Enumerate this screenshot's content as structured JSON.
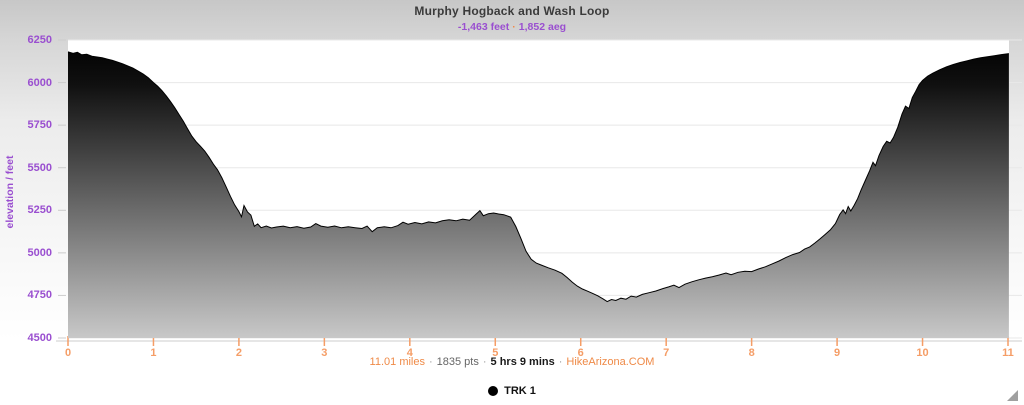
{
  "chart_data": {
    "type": "area",
    "title": "Murphy Hogback and Wash Loop",
    "subtitle": {
      "descent": "-1,463 feet",
      "separator": "·",
      "gain": "1,852 aeg"
    },
    "ylabel": "elevation / feet",
    "xlabel": "",
    "xlim": [
      0,
      11.01
    ],
    "ylim": [
      4500,
      6250
    ],
    "xticks": [
      0,
      1,
      2,
      3,
      4,
      5,
      6,
      7,
      8,
      9,
      10,
      11
    ],
    "yticks": [
      4500,
      4750,
      5000,
      5250,
      5500,
      5750,
      6000,
      6250
    ],
    "grid": "horizontal",
    "legend_position": "bottom",
    "series": [
      {
        "name": "TRK 1",
        "line_color": "#000000",
        "points": [
          [
            0.0,
            6180
          ],
          [
            0.06,
            6172
          ],
          [
            0.11,
            6178
          ],
          [
            0.16,
            6163
          ],
          [
            0.22,
            6166
          ],
          [
            0.28,
            6155
          ],
          [
            0.34,
            6150
          ],
          [
            0.4,
            6146
          ],
          [
            0.46,
            6138
          ],
          [
            0.52,
            6130
          ],
          [
            0.58,
            6120
          ],
          [
            0.64,
            6110
          ],
          [
            0.7,
            6098
          ],
          [
            0.76,
            6085
          ],
          [
            0.82,
            6068
          ],
          [
            0.88,
            6050
          ],
          [
            0.94,
            6028
          ],
          [
            1.0,
            6000
          ],
          [
            1.05,
            5978
          ],
          [
            1.1,
            5952
          ],
          [
            1.15,
            5922
          ],
          [
            1.2,
            5888
          ],
          [
            1.25,
            5852
          ],
          [
            1.3,
            5812
          ],
          [
            1.35,
            5772
          ],
          [
            1.4,
            5728
          ],
          [
            1.45,
            5685
          ],
          [
            1.5,
            5652
          ],
          [
            1.55,
            5626
          ],
          [
            1.6,
            5598
          ],
          [
            1.65,
            5562
          ],
          [
            1.7,
            5522
          ],
          [
            1.75,
            5488
          ],
          [
            1.8,
            5442
          ],
          [
            1.85,
            5388
          ],
          [
            1.9,
            5332
          ],
          [
            1.95,
            5282
          ],
          [
            2.0,
            5242
          ],
          [
            2.03,
            5212
          ],
          [
            2.06,
            5278
          ],
          [
            2.1,
            5240
          ],
          [
            2.14,
            5222
          ],
          [
            2.18,
            5156
          ],
          [
            2.22,
            5170
          ],
          [
            2.26,
            5148
          ],
          [
            2.32,
            5158
          ],
          [
            2.38,
            5146
          ],
          [
            2.44,
            5152
          ],
          [
            2.52,
            5157
          ],
          [
            2.6,
            5148
          ],
          [
            2.68,
            5154
          ],
          [
            2.76,
            5145
          ],
          [
            2.84,
            5152
          ],
          [
            2.9,
            5172
          ],
          [
            2.96,
            5157
          ],
          [
            3.04,
            5150
          ],
          [
            3.12,
            5158
          ],
          [
            3.2,
            5147
          ],
          [
            3.28,
            5153
          ],
          [
            3.36,
            5148
          ],
          [
            3.44,
            5143
          ],
          [
            3.5,
            5157
          ],
          [
            3.56,
            5124
          ],
          [
            3.62,
            5148
          ],
          [
            3.7,
            5153
          ],
          [
            3.78,
            5147
          ],
          [
            3.86,
            5160
          ],
          [
            3.92,
            5180
          ],
          [
            3.98,
            5168
          ],
          [
            4.06,
            5178
          ],
          [
            4.14,
            5170
          ],
          [
            4.22,
            5182
          ],
          [
            4.3,
            5176
          ],
          [
            4.38,
            5188
          ],
          [
            4.46,
            5194
          ],
          [
            4.54,
            5188
          ],
          [
            4.62,
            5198
          ],
          [
            4.7,
            5192
          ],
          [
            4.78,
            5230
          ],
          [
            4.82,
            5248
          ],
          [
            4.86,
            5218
          ],
          [
            4.92,
            5230
          ],
          [
            4.98,
            5234
          ],
          [
            5.04,
            5228
          ],
          [
            5.1,
            5224
          ],
          [
            5.18,
            5210
          ],
          [
            5.24,
            5155
          ],
          [
            5.3,
            5085
          ],
          [
            5.36,
            5010
          ],
          [
            5.42,
            4962
          ],
          [
            5.48,
            4940
          ],
          [
            5.54,
            4928
          ],
          [
            5.62,
            4912
          ],
          [
            5.7,
            4898
          ],
          [
            5.78,
            4880
          ],
          [
            5.84,
            4855
          ],
          [
            5.9,
            4828
          ],
          [
            5.96,
            4805
          ],
          [
            6.02,
            4788
          ],
          [
            6.08,
            4775
          ],
          [
            6.14,
            4762
          ],
          [
            6.2,
            4748
          ],
          [
            6.26,
            4730
          ],
          [
            6.31,
            4714
          ],
          [
            6.36,
            4726
          ],
          [
            6.41,
            4720
          ],
          [
            6.47,
            4734
          ],
          [
            6.53,
            4728
          ],
          [
            6.59,
            4746
          ],
          [
            6.65,
            4740
          ],
          [
            6.72,
            4756
          ],
          [
            6.8,
            4766
          ],
          [
            6.88,
            4776
          ],
          [
            6.96,
            4790
          ],
          [
            7.03,
            4800
          ],
          [
            7.09,
            4810
          ],
          [
            7.15,
            4796
          ],
          [
            7.22,
            4816
          ],
          [
            7.3,
            4830
          ],
          [
            7.38,
            4842
          ],
          [
            7.46,
            4852
          ],
          [
            7.54,
            4860
          ],
          [
            7.62,
            4870
          ],
          [
            7.7,
            4882
          ],
          [
            7.76,
            4872
          ],
          [
            7.84,
            4886
          ],
          [
            7.92,
            4892
          ],
          [
            8.0,
            4890
          ],
          [
            8.08,
            4905
          ],
          [
            8.16,
            4918
          ],
          [
            8.24,
            4935
          ],
          [
            8.32,
            4952
          ],
          [
            8.4,
            4972
          ],
          [
            8.48,
            4990
          ],
          [
            8.56,
            5002
          ],
          [
            8.62,
            5022
          ],
          [
            8.68,
            5035
          ],
          [
            8.74,
            5058
          ],
          [
            8.8,
            5082
          ],
          [
            8.86,
            5108
          ],
          [
            8.92,
            5135
          ],
          [
            8.98,
            5172
          ],
          [
            9.03,
            5225
          ],
          [
            9.07,
            5252
          ],
          [
            9.1,
            5230
          ],
          [
            9.13,
            5272
          ],
          [
            9.16,
            5246
          ],
          [
            9.2,
            5280
          ],
          [
            9.24,
            5318
          ],
          [
            9.28,
            5368
          ],
          [
            9.33,
            5425
          ],
          [
            9.38,
            5482
          ],
          [
            9.42,
            5532
          ],
          [
            9.45,
            5512
          ],
          [
            9.49,
            5572
          ],
          [
            9.54,
            5625
          ],
          [
            9.58,
            5655
          ],
          [
            9.62,
            5645
          ],
          [
            9.66,
            5678
          ],
          [
            9.71,
            5738
          ],
          [
            9.76,
            5815
          ],
          [
            9.8,
            5862
          ],
          [
            9.84,
            5848
          ],
          [
            9.88,
            5912
          ],
          [
            9.92,
            5948
          ],
          [
            9.96,
            5988
          ],
          [
            10.0,
            6012
          ],
          [
            10.06,
            6038
          ],
          [
            10.12,
            6055
          ],
          [
            10.2,
            6075
          ],
          [
            10.28,
            6092
          ],
          [
            10.36,
            6106
          ],
          [
            10.44,
            6118
          ],
          [
            10.52,
            6128
          ],
          [
            10.6,
            6138
          ],
          [
            10.68,
            6146
          ],
          [
            10.76,
            6152
          ],
          [
            10.84,
            6158
          ],
          [
            10.92,
            6164
          ],
          [
            11.01,
            6170
          ]
        ]
      }
    ]
  },
  "footer": {
    "distance": "11.01 miles",
    "separator": "·",
    "points_count": "1835 pts",
    "duration": "5 hrs 9 mins",
    "brand": "HikeArizona.COM"
  },
  "legend": {
    "items": [
      {
        "label": "TRK 1",
        "dot_icon": "●"
      }
    ]
  },
  "colors": {
    "purple": "#9a4fd0",
    "orange_text": "#ef8a47",
    "orange_tick": "#f59d66",
    "title_text": "#3b3b3b",
    "line": "#000000",
    "fill_top": "#000000",
    "fill_bottom": "#c8c8c8",
    "grid": "#e8e8e8",
    "axis_line": "#cccccc",
    "plot_bg": "#ffffff"
  }
}
